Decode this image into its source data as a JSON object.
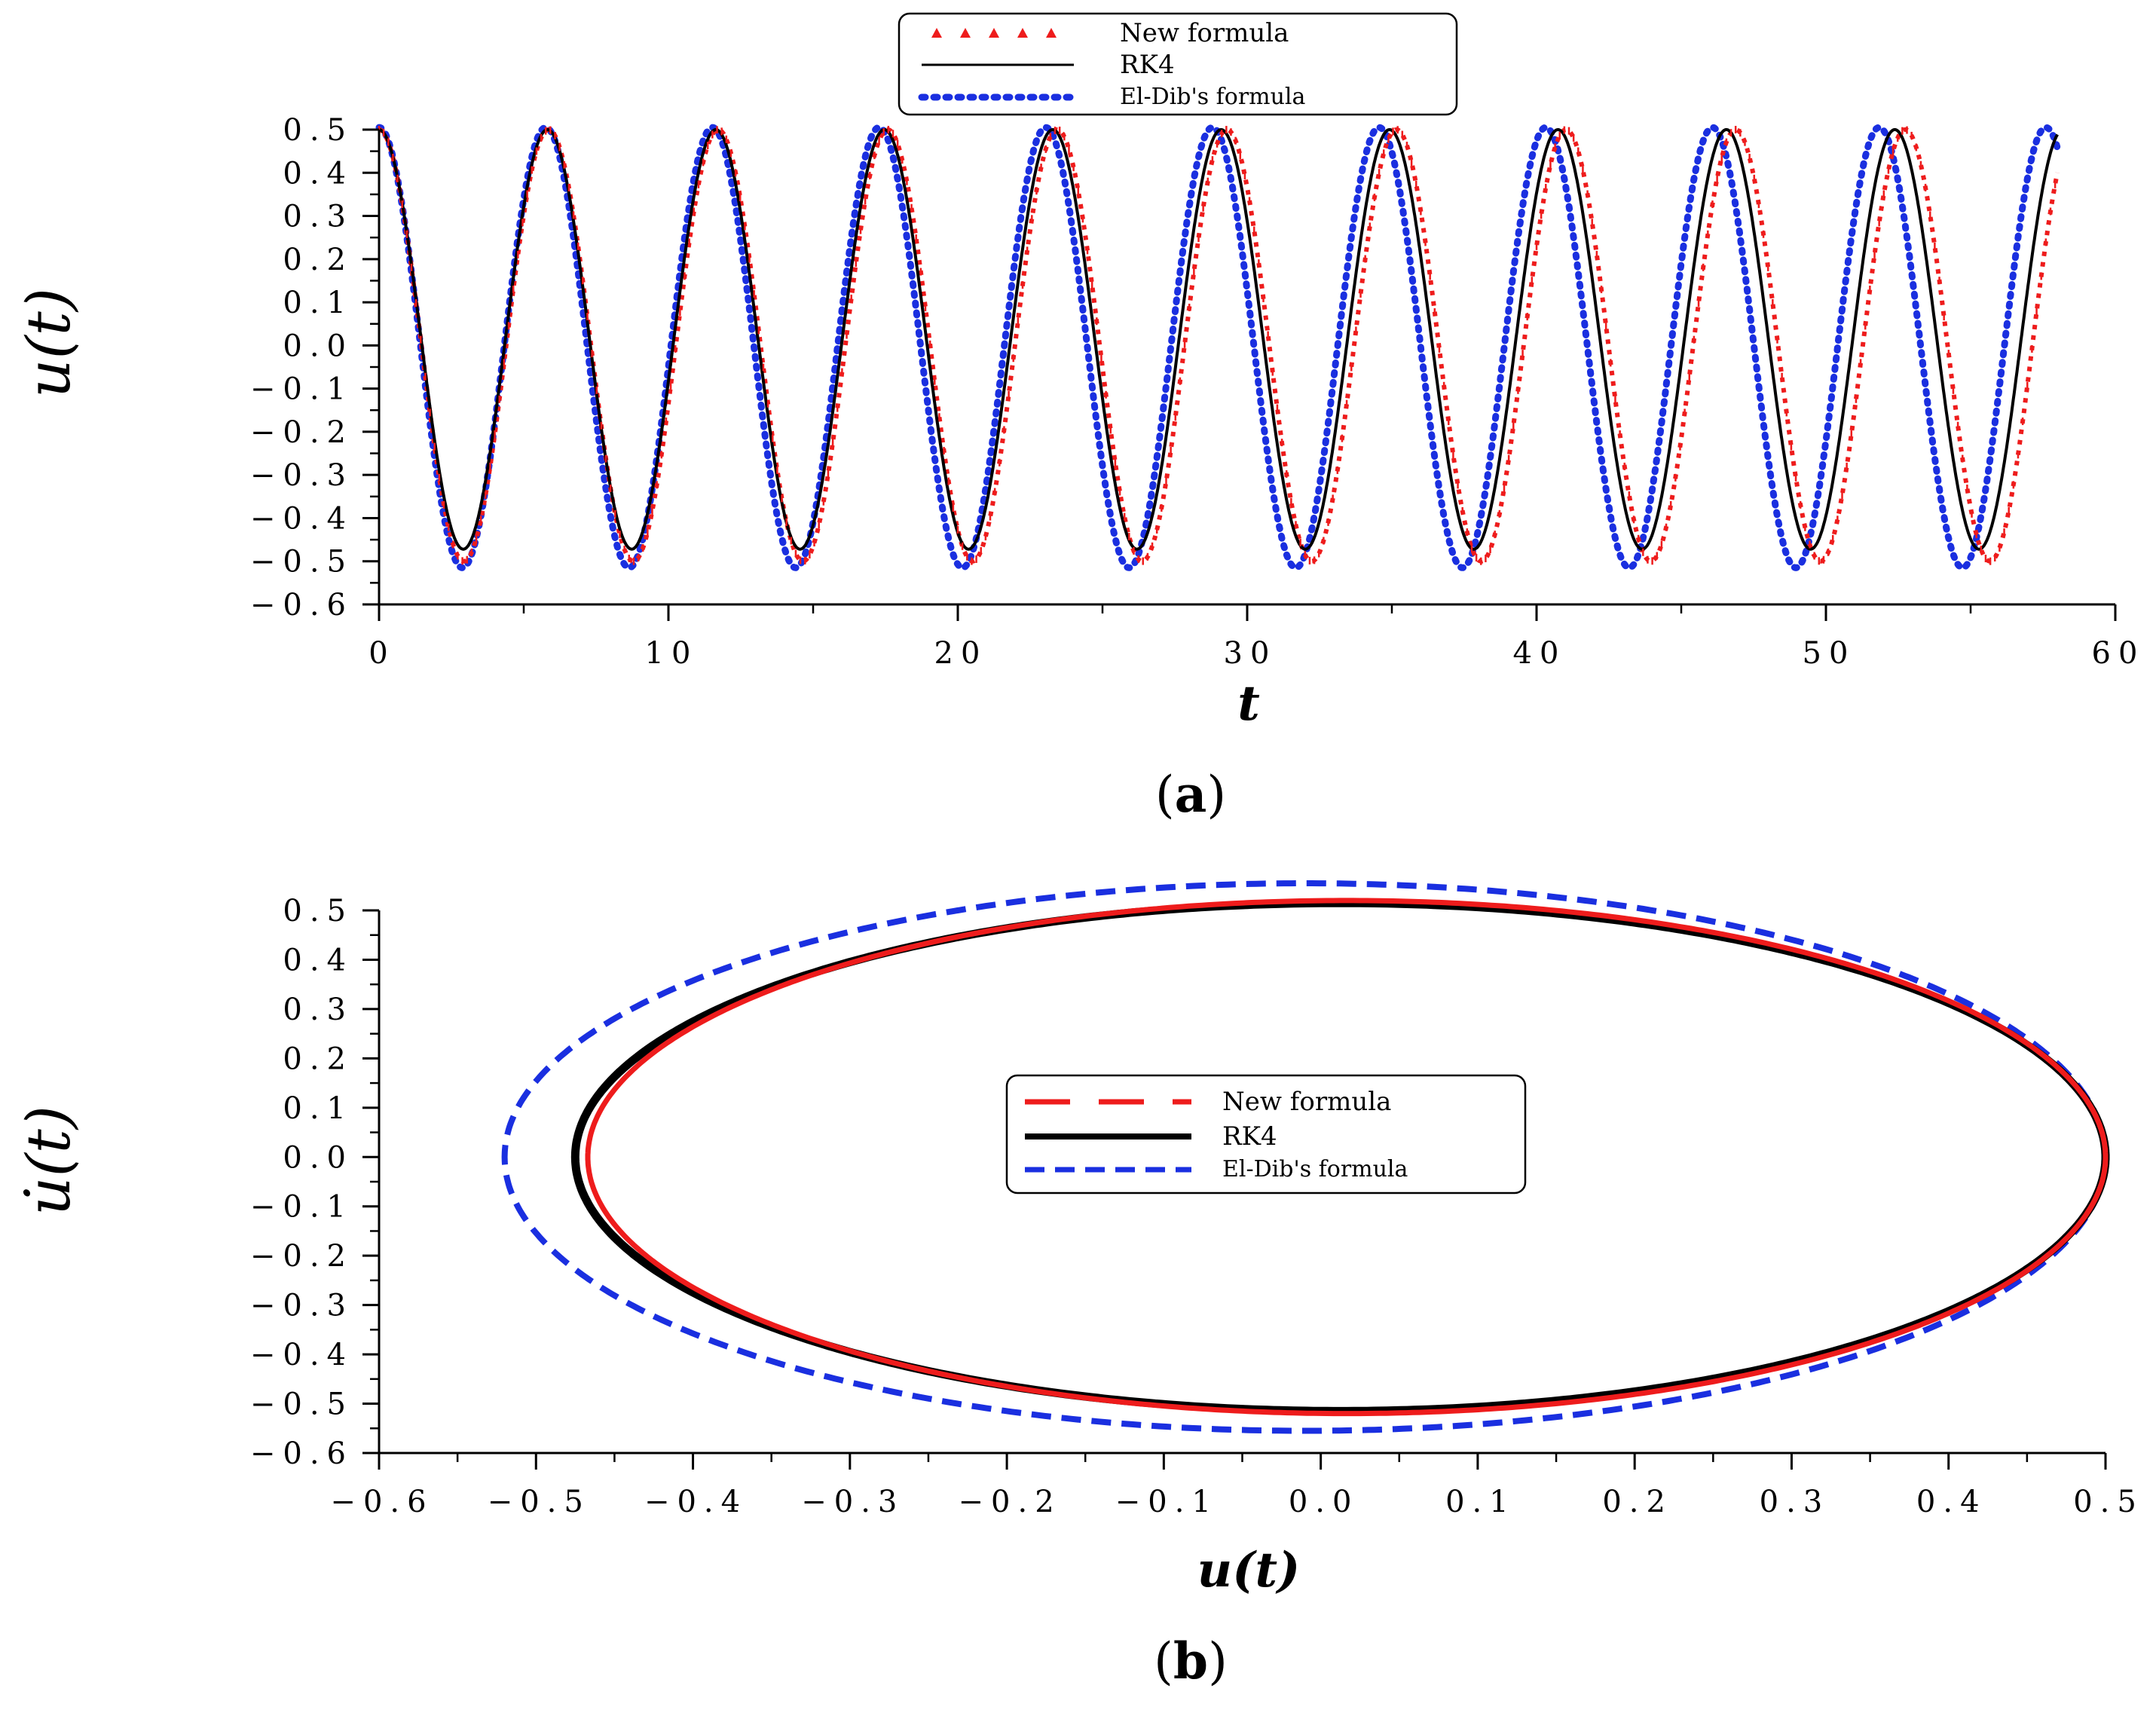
{
  "colors": {
    "new": "#ee1c1c",
    "rk4": "#000000",
    "eldib": "#1a2fe0"
  },
  "chart_data": [
    {
      "type": "line",
      "caption_open": "(",
      "caption_letter": "a",
      "caption_close": ")",
      "xlabel": "t",
      "ylabel": "u(t)",
      "xlim": [
        0,
        60
      ],
      "ylim": [
        -0.6,
        0.5
      ],
      "xticks": [
        0,
        10,
        20,
        30,
        40,
        50,
        60
      ],
      "xtick_labels": [
        "0",
        "10",
        "20",
        "30",
        "40",
        "50",
        "60"
      ],
      "yticks": [
        0.5,
        0.4,
        0.3,
        0.2,
        0.1,
        0.0,
        -0.1,
        -0.2,
        -0.3,
        -0.4,
        -0.5,
        -0.6
      ],
      "ytick_labels": [
        "0.5",
        "0.4",
        "0.3",
        "0.2",
        "0.1",
        "0.0",
        "−0.1",
        "−0.2",
        "−0.3",
        "−0.4",
        "−0.5",
        "−0.6"
      ],
      "t_range": [
        0,
        58
      ],
      "series": [
        {
          "name": "New formula",
          "style": "red triangle markers",
          "amplitude": 0.5,
          "center": 0.0,
          "period": 5.86
        },
        {
          "name": "RK4",
          "style": "solid black",
          "max": 0.5,
          "min": -0.472,
          "period": 5.82
        },
        {
          "name": "El-Dib's formula",
          "style": "blue dotted",
          "amplitude": 0.51,
          "center": -0.005,
          "period": 5.76
        }
      ],
      "legend": [
        "New formula",
        "RK4",
        "El-Dib's formula"
      ],
      "legend_position": "top-center"
    },
    {
      "type": "line",
      "caption_open": "(",
      "caption_letter": "b",
      "caption_close": ")",
      "xlabel": "u(t)",
      "ylabel": "u̇(t)",
      "xlim": [
        -0.6,
        0.5
      ],
      "ylim": [
        -0.6,
        0.5
      ],
      "xticks": [
        -0.6,
        -0.5,
        -0.4,
        -0.3,
        -0.2,
        -0.1,
        0.0,
        0.1,
        0.2,
        0.3,
        0.4,
        0.5
      ],
      "xtick_labels": [
        "−0.6",
        "−0.5",
        "−0.4",
        "−0.3",
        "−0.2",
        "−0.1",
        "0.0",
        "0.1",
        "0.2",
        "0.3",
        "0.4",
        "0.5"
      ],
      "yticks": [
        0.5,
        0.4,
        0.3,
        0.2,
        0.1,
        0.0,
        -0.1,
        -0.2,
        -0.3,
        -0.4,
        -0.5,
        -0.6
      ],
      "ytick_labels": [
        "0.5",
        "0.4",
        "0.3",
        "0.2",
        "0.1",
        "0.0",
        "−0.1",
        "−0.2",
        "−0.3",
        "−0.4",
        "−0.5",
        "−0.6"
      ],
      "series": [
        {
          "name": "New formula",
          "style": "red long-dash",
          "u_right": 0.5,
          "u_left": -0.467,
          "v_peak": 0.52
        },
        {
          "name": "RK4",
          "style": "solid black",
          "u_right": 0.5,
          "u_left": -0.475,
          "v_peak": 0.515
        },
        {
          "name": "El-Dib's formula",
          "style": "blue dashed",
          "u_right": 0.5,
          "u_left": -0.52,
          "v_peak": 0.555
        }
      ],
      "legend": [
        "New formula",
        "RK4",
        "El-Dib's formula"
      ],
      "legend_position": "center"
    }
  ]
}
